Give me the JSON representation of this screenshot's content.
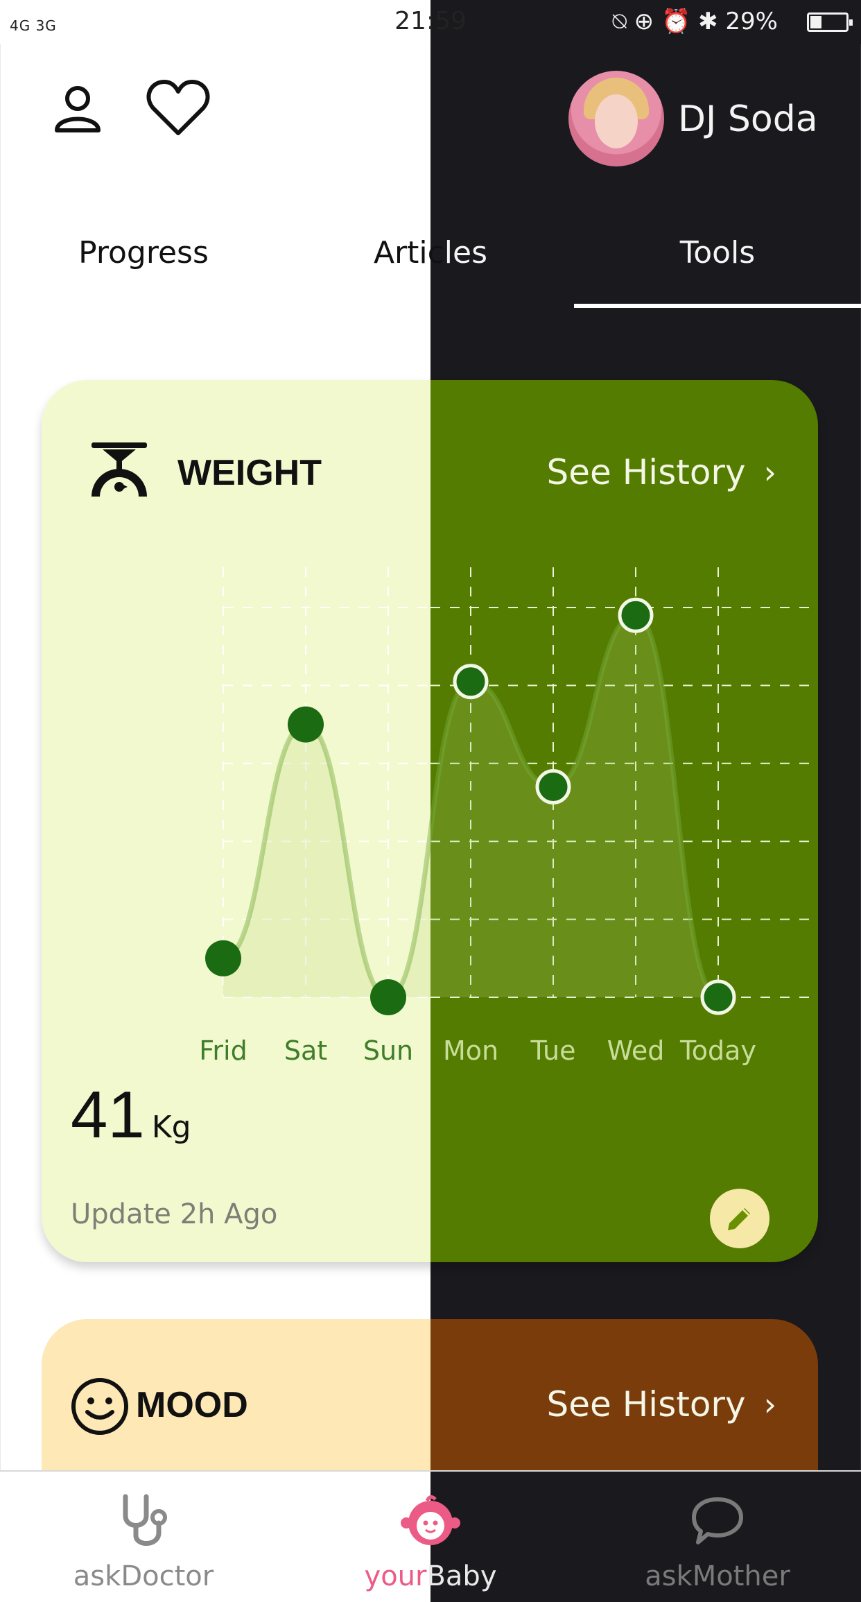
{
  "status_bar": {
    "signal_left": "4G 3G",
    "time": "21:59",
    "right_icons": "⍉ ⊕ ⏰ ✱",
    "battery": "29%"
  },
  "header": {
    "user_name": "DJ Soda",
    "icons": [
      "profile-icon",
      "heart-icon"
    ]
  },
  "tabs": [
    {
      "label": "Progress",
      "active": false
    },
    {
      "label": "Articles",
      "active": false
    },
    {
      "label": "Tools",
      "active": true
    }
  ],
  "weight_card": {
    "title": "WEIGHT",
    "see_history": "See History",
    "value": "41",
    "unit": "Kg",
    "updated": "Update 2h Ago",
    "colors": {
      "light": "#f2f9cf",
      "dark": "#547c00",
      "point": "#1a6b12"
    }
  },
  "chart_data": {
    "type": "line",
    "categories": [
      "Frid",
      "Sat",
      "Sun",
      "Mon",
      "Tue",
      "Wed",
      "Today"
    ],
    "values": [
      1.0,
      7.0,
      0.0,
      8.1,
      5.4,
      9.8,
      0.0
    ],
    "ylim": [
      0,
      10
    ],
    "grid": true,
    "title": "",
    "xlabel": "",
    "ylabel": ""
  },
  "mood_card": {
    "title": "MOOD",
    "see_history": "See History"
  },
  "bottom_nav": [
    {
      "label": "askDoctor",
      "icon": "stethoscope-icon",
      "active": false
    },
    {
      "label_a": "your",
      "label_b": "Baby",
      "icon": "baby-face-icon",
      "active": true
    },
    {
      "label": "askMother",
      "icon": "chat-bubble-icon",
      "active": false
    }
  ]
}
